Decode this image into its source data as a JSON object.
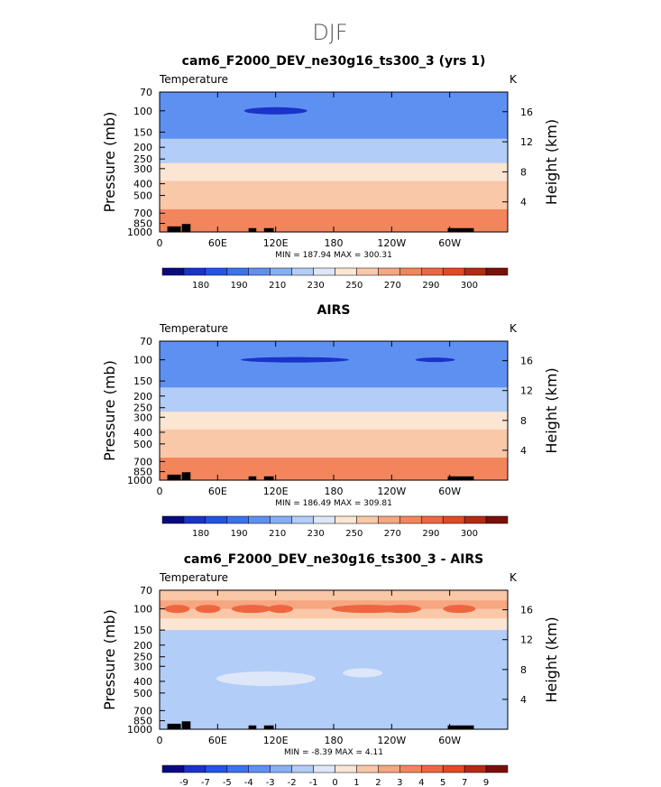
{
  "page_title": "DJF",
  "chart_data": [
    {
      "type": "heatmap",
      "title": "cam6_F2000_DEV_ne30g16_ts300_3 (yrs 1)",
      "variable_label": "Temperature",
      "units_label": "K",
      "ylabel": "Pressure  (mb)",
      "y2label": "Height  (km)",
      "ylim": [
        70,
        1000
      ],
      "x_ticks": [
        "0",
        "60E",
        "120E",
        "180",
        "120W",
        "60W"
      ],
      "x_tick_values": [
        0,
        60,
        120,
        180,
        240,
        300
      ],
      "xlim": [
        0,
        360
      ],
      "y_ticks": [
        "70",
        "100",
        "150",
        "200",
        "250",
        "300",
        "400",
        "500",
        "700",
        "850",
        "1000"
      ],
      "y_tick_values": [
        70,
        100,
        150,
        200,
        250,
        300,
        400,
        500,
        700,
        850,
        1000
      ],
      "height_ticks": [
        "4",
        "8",
        "12",
        "16"
      ],
      "height_tick_values": [
        4,
        8,
        12,
        16
      ],
      "stats": "MIN = 187.94   MAX = 300.31",
      "colorbar_labels": [
        "180",
        "190",
        "210",
        "230",
        "250",
        "270",
        "290",
        "300"
      ],
      "colorbar_colors": [
        "#0a0a80",
        "#1a33c8",
        "#2255e6",
        "#3d72ee",
        "#5e90f2",
        "#86b0f6",
        "#b2cdf8",
        "#dde7f8",
        "#fbe5d3",
        "#f9c8a8",
        "#f6a680",
        "#f3855c",
        "#ee6640",
        "#e24a22",
        "#b52a12",
        "#7c0f0a"
      ],
      "profile": [
        {
          "p": 70,
          "v": 205
        },
        {
          "p": 100,
          "v": 203
        },
        {
          "p": 130,
          "v": 207
        },
        {
          "p": 170,
          "v": 212
        },
        {
          "p": 220,
          "v": 220
        },
        {
          "p": 270,
          "v": 230
        },
        {
          "p": 320,
          "v": 240
        },
        {
          "p": 380,
          "v": 248
        },
        {
          "p": 450,
          "v": 256
        },
        {
          "p": 550,
          "v": 263
        },
        {
          "p": 650,
          "v": 270
        },
        {
          "p": 750,
          "v": 276
        },
        {
          "p": 850,
          "v": 282
        },
        {
          "p": 1000,
          "v": 290
        }
      ]
    },
    {
      "type": "heatmap",
      "title": "AIRS",
      "variable_label": "Temperature",
      "units_label": "K",
      "ylabel": "Pressure  (mb)",
      "y2label": "Height  (km)",
      "ylim": [
        70,
        1000
      ],
      "x_ticks": [
        "0",
        "60E",
        "120E",
        "180",
        "120W",
        "60W"
      ],
      "x_tick_values": [
        0,
        60,
        120,
        180,
        240,
        300
      ],
      "xlim": [
        0,
        360
      ],
      "y_ticks": [
        "70",
        "100",
        "150",
        "200",
        "250",
        "300",
        "400",
        "500",
        "700",
        "850",
        "1000"
      ],
      "y_tick_values": [
        70,
        100,
        150,
        200,
        250,
        300,
        400,
        500,
        700,
        850,
        1000
      ],
      "height_ticks": [
        "4",
        "8",
        "12",
        "16"
      ],
      "height_tick_values": [
        4,
        8,
        12,
        16
      ],
      "stats": "MIN = 186.49   MAX = 309.81",
      "colorbar_labels": [
        "180",
        "190",
        "210",
        "230",
        "250",
        "270",
        "290",
        "300"
      ],
      "colorbar_colors": [
        "#0a0a80",
        "#1a33c8",
        "#2255e6",
        "#3d72ee",
        "#5e90f2",
        "#86b0f6",
        "#b2cdf8",
        "#dde7f8",
        "#fbe5d3",
        "#f9c8a8",
        "#f6a680",
        "#f3855c",
        "#ee6640",
        "#e24a22",
        "#b52a12",
        "#7c0f0a"
      ],
      "profile": [
        {
          "p": 70,
          "v": 205
        },
        {
          "p": 100,
          "v": 202
        },
        {
          "p": 130,
          "v": 207
        },
        {
          "p": 170,
          "v": 212
        },
        {
          "p": 220,
          "v": 220
        },
        {
          "p": 270,
          "v": 230
        },
        {
          "p": 320,
          "v": 240
        },
        {
          "p": 380,
          "v": 248
        },
        {
          "p": 450,
          "v": 256
        },
        {
          "p": 550,
          "v": 263
        },
        {
          "p": 650,
          "v": 270
        },
        {
          "p": 750,
          "v": 276
        },
        {
          "p": 850,
          "v": 282
        },
        {
          "p": 1000,
          "v": 290
        }
      ]
    },
    {
      "type": "heatmap",
      "title": "cam6_F2000_DEV_ne30g16_ts300_3 - AIRS",
      "variable_label": "Temperature",
      "units_label": "K",
      "ylabel": "Pressure  (mb)",
      "y2label": "Height  (km)",
      "ylim": [
        70,
        1000
      ],
      "x_ticks": [
        "0",
        "60E",
        "120E",
        "180",
        "120W",
        "60W"
      ],
      "x_tick_values": [
        0,
        60,
        120,
        180,
        240,
        300
      ],
      "xlim": [
        0,
        360
      ],
      "y_ticks": [
        "70",
        "100",
        "150",
        "200",
        "250",
        "300",
        "400",
        "500",
        "700",
        "850",
        "1000"
      ],
      "y_tick_values": [
        70,
        100,
        150,
        200,
        250,
        300,
        400,
        500,
        700,
        850,
        1000
      ],
      "height_ticks": [
        "4",
        "8",
        "12",
        "16"
      ],
      "height_tick_values": [
        4,
        8,
        12,
        16
      ],
      "stats": "MIN =   -8.39   MAX =    4.11",
      "colorbar_labels": [
        "-9",
        "-7",
        "-5",
        "-4",
        "-3",
        "-2",
        "-1",
        "0",
        "1",
        "2",
        "3",
        "4",
        "5",
        "7",
        "9"
      ],
      "colorbar_colors": [
        "#0a0a80",
        "#1a33c8",
        "#2255e6",
        "#3d72ee",
        "#5e90f2",
        "#86b0f6",
        "#b2cdf8",
        "#dde7f8",
        "#fbe5d3",
        "#f9c8a8",
        "#f6a680",
        "#f3855c",
        "#ee6640",
        "#e24a22",
        "#b52a12",
        "#7c0f0a"
      ],
      "profile": [
        {
          "p": 70,
          "v": 0.5
        },
        {
          "p": 85,
          "v": 1.5
        },
        {
          "p": 100,
          "v": 2.5
        },
        {
          "p": 120,
          "v": 1.2
        },
        {
          "p": 150,
          "v": -0.8
        },
        {
          "p": 200,
          "v": -2.2
        },
        {
          "p": 250,
          "v": -1.5
        },
        {
          "p": 300,
          "v": -1.2
        },
        {
          "p": 400,
          "v": -1.3
        },
        {
          "p": 500,
          "v": -1.4
        },
        {
          "p": 700,
          "v": -1.5
        },
        {
          "p": 850,
          "v": -1.4
        },
        {
          "p": 1000,
          "v": -0.8
        }
      ]
    }
  ]
}
